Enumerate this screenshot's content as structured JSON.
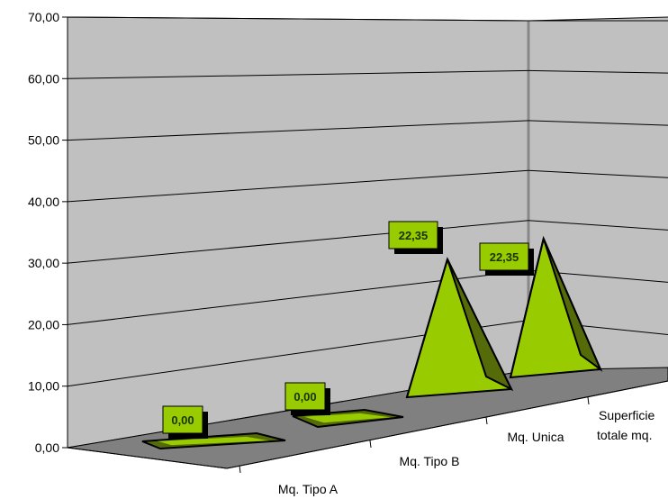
{
  "chart_data": {
    "type": "bar",
    "style": "3d-pyramid",
    "categories": [
      "Mq. Tipo A",
      "Mq. Tipo B",
      "Mq. Unica",
      "Superficie totale mq."
    ],
    "values": [
      0,
      0,
      22.35,
      22.35
    ],
    "data_labels": [
      "0,00",
      "0,00",
      "22,35",
      "22,35"
    ],
    "y_ticks": [
      "0,00",
      "10,00",
      "20,00",
      "30,00",
      "40,00",
      "50,00",
      "60,00",
      "70,00"
    ],
    "ylim": [
      0,
      70
    ],
    "grid": true,
    "colors": {
      "wall": "#c0c0c0",
      "floor": "#808080",
      "pyramid_light": "#99cc00",
      "pyramid_dark": "#556b0a",
      "label_bg": "#99cc00",
      "label_shadow": "#000000"
    }
  }
}
